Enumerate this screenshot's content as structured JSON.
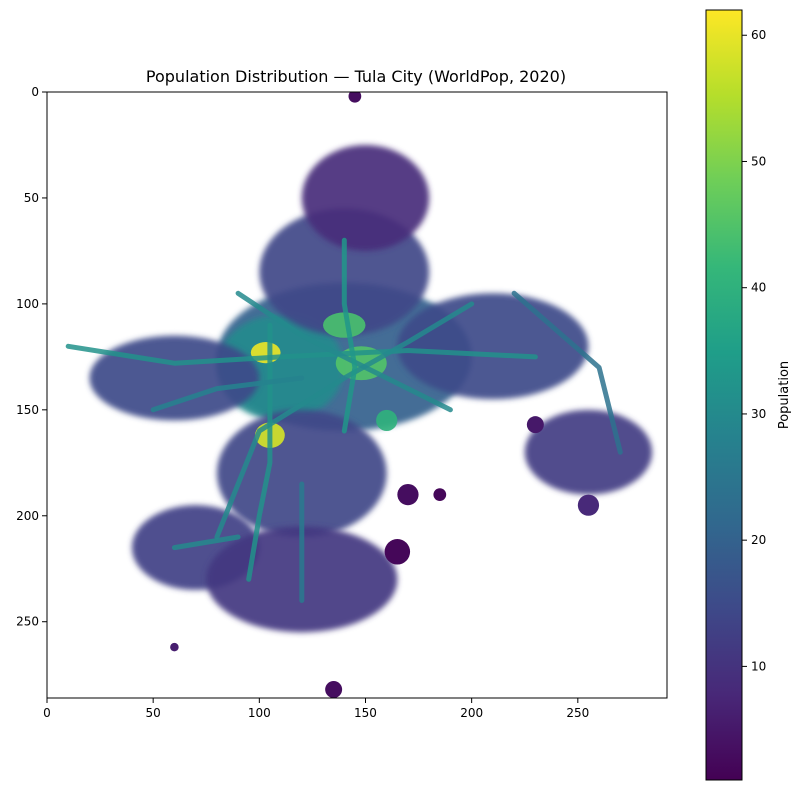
{
  "chart_data": {
    "type": "heatmap",
    "title": "Population Distribution — Tula City (WorldPop, 2020)",
    "xlabel": "",
    "ylabel": "",
    "xlim": [
      0,
      292
    ],
    "ylim": [
      286,
      0
    ],
    "x_ticks": [
      "0",
      "50",
      "100",
      "150",
      "200",
      "250"
    ],
    "x_tick_values": [
      0,
      50,
      100,
      150,
      200,
      250
    ],
    "y_ticks": [
      "0",
      "50",
      "100",
      "150",
      "200",
      "250"
    ],
    "y_tick_values": [
      0,
      50,
      100,
      150,
      200,
      250
    ],
    "colorbar": {
      "label": "Population",
      "range": [
        1,
        62
      ],
      "ticks": [
        "10",
        "20",
        "30",
        "40",
        "50",
        "60"
      ],
      "tick_values": [
        10,
        20,
        30,
        40,
        50,
        60
      ],
      "colormap": "viridis",
      "colors": [
        "#440154",
        "#482878",
        "#3e4989",
        "#31688e",
        "#26828e",
        "#1f9e89",
        "#35b779",
        "#6ece58",
        "#b5de2b",
        "#fde725"
      ]
    },
    "no_data_color": "#ffffff",
    "regions": [
      {
        "name": "city-core",
        "cx": 140,
        "cy": 125,
        "rx": 60,
        "ry": 35,
        "value": 20
      },
      {
        "name": "central-district",
        "cx": 110,
        "cy": 130,
        "rx": 30,
        "ry": 25,
        "value": 30
      },
      {
        "name": "north-core",
        "cx": 140,
        "cy": 85,
        "rx": 40,
        "ry": 30,
        "value": 14
      },
      {
        "name": "north-fringe",
        "cx": 150,
        "cy": 50,
        "rx": 30,
        "ry": 25,
        "value": 9
      },
      {
        "name": "east-belt",
        "cx": 210,
        "cy": 120,
        "rx": 45,
        "ry": 25,
        "value": 15
      },
      {
        "name": "south-east-lobe",
        "cx": 255,
        "cy": 170,
        "rx": 30,
        "ry": 20,
        "value": 12
      },
      {
        "name": "south-belt",
        "cx": 120,
        "cy": 180,
        "rx": 40,
        "ry": 30,
        "value": 14
      },
      {
        "name": "south-west",
        "cx": 70,
        "cy": 215,
        "rx": 30,
        "ry": 20,
        "value": 13
      },
      {
        "name": "south-central",
        "cx": 120,
        "cy": 230,
        "rx": 45,
        "ry": 25,
        "value": 11
      },
      {
        "name": "west-belt",
        "cx": 60,
        "cy": 135,
        "rx": 40,
        "ry": 20,
        "value": 15
      },
      {
        "name": "hotspot-1",
        "cx": 105,
        "cy": 162,
        "rx": 7,
        "ry": 6,
        "value": 58
      },
      {
        "name": "hotspot-2",
        "cx": 103,
        "cy": 123,
        "rx": 7,
        "ry": 5,
        "value": 60
      },
      {
        "name": "hotspot-3",
        "cx": 148,
        "cy": 128,
        "rx": 12,
        "ry": 8,
        "value": 45
      },
      {
        "name": "hotspot-4",
        "cx": 140,
        "cy": 110,
        "rx": 10,
        "ry": 6,
        "value": 44
      },
      {
        "name": "hotspot-5",
        "cx": 160,
        "cy": 155,
        "rx": 5,
        "ry": 5,
        "value": 40
      }
    ],
    "roads": [
      {
        "path": [
          [
            10,
            120
          ],
          [
            60,
            128
          ],
          [
            110,
            125
          ],
          [
            170,
            122
          ],
          [
            230,
            125
          ]
        ],
        "value": 32
      },
      {
        "path": [
          [
            90,
            95
          ],
          [
            120,
            115
          ],
          [
            150,
            130
          ],
          [
            190,
            150
          ]
        ],
        "value": 30
      },
      {
        "path": [
          [
            200,
            100
          ],
          [
            170,
            118
          ],
          [
            140,
            135
          ],
          [
            100,
            160
          ],
          [
            80,
            210
          ]
        ],
        "value": 30
      },
      {
        "path": [
          [
            140,
            70
          ],
          [
            140,
            100
          ],
          [
            145,
            130
          ],
          [
            140,
            160
          ]
        ],
        "value": 33
      },
      {
        "path": [
          [
            105,
            110
          ],
          [
            105,
            140
          ],
          [
            105,
            175
          ],
          [
            100,
            200
          ],
          [
            95,
            230
          ]
        ],
        "value": 32
      },
      {
        "path": [
          [
            50,
            150
          ],
          [
            80,
            140
          ],
          [
            120,
            135
          ]
        ],
        "value": 28
      },
      {
        "path": [
          [
            120,
            185
          ],
          [
            120,
            240
          ]
        ],
        "value": 26
      },
      {
        "path": [
          [
            220,
            95
          ],
          [
            260,
            130
          ],
          [
            270,
            170
          ]
        ],
        "value": 24
      },
      {
        "path": [
          [
            60,
            215
          ],
          [
            90,
            210
          ]
        ],
        "value": 30
      }
    ],
    "speckles": [
      {
        "cx": 135,
        "cy": 282,
        "r": 4,
        "value": 3
      },
      {
        "cx": 60,
        "cy": 262,
        "r": 2,
        "value": 6
      },
      {
        "cx": 165,
        "cy": 217,
        "r": 6,
        "value": 2
      },
      {
        "cx": 170,
        "cy": 190,
        "r": 5,
        "value": 3
      },
      {
        "cx": 185,
        "cy": 190,
        "r": 3,
        "value": 2
      },
      {
        "cx": 255,
        "cy": 195,
        "r": 5,
        "value": 8
      },
      {
        "cx": 230,
        "cy": 157,
        "r": 4,
        "value": 5
      },
      {
        "cx": 145,
        "cy": 2,
        "r": 3,
        "value": 3
      }
    ]
  }
}
